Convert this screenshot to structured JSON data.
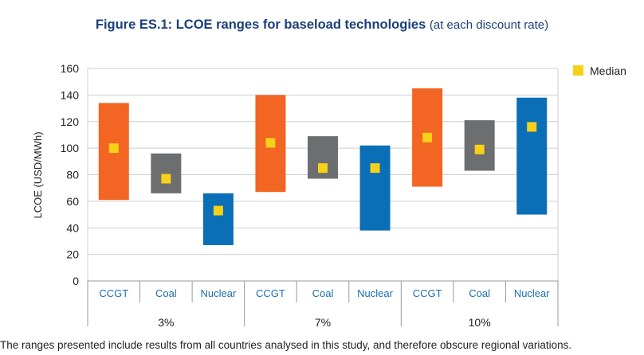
{
  "title": {
    "main": "Figure ES.1: LCOE ranges for baseload technologies",
    "sub": "(at each discount rate)"
  },
  "note": "The ranges presented include results from all countries analysed in this study, and therefore obscure regional variations.",
  "chart_data": {
    "type": "bar",
    "ylabel": "LCOE (USD/MWh)",
    "ylim": [
      0,
      160
    ],
    "yticks": [
      0,
      20,
      40,
      60,
      80,
      100,
      120,
      140,
      160
    ],
    "grid": true,
    "legend": {
      "placement": "top-right",
      "label": "Median",
      "color": "#f7d117"
    },
    "groups": [
      "3%",
      "7%",
      "10%"
    ],
    "categories": [
      "CCGT",
      "Coal",
      "Nuclear",
      "CCGT",
      "Coal",
      "Nuclear",
      "CCGT",
      "Coal",
      "Nuclear"
    ],
    "series": [
      {
        "group": "3%",
        "technology": "CCGT",
        "min": 61,
        "max": 134,
        "median": 100,
        "color": "#f26522"
      },
      {
        "group": "3%",
        "technology": "Coal",
        "min": 66,
        "max": 96,
        "median": 77,
        "color": "#6d6e70"
      },
      {
        "group": "3%",
        "technology": "Nuclear",
        "min": 27,
        "max": 66,
        "median": 53,
        "color": "#0a6fb7"
      },
      {
        "group": "7%",
        "technology": "CCGT",
        "min": 67,
        "max": 140,
        "median": 104,
        "color": "#f26522"
      },
      {
        "group": "7%",
        "technology": "Coal",
        "min": 77,
        "max": 109,
        "median": 85,
        "color": "#6d6e70"
      },
      {
        "group": "7%",
        "technology": "Nuclear",
        "min": 38,
        "max": 102,
        "median": 85,
        "color": "#0a6fb7"
      },
      {
        "group": "10%",
        "technology": "CCGT",
        "min": 71,
        "max": 145,
        "median": 108,
        "color": "#f26522"
      },
      {
        "group": "10%",
        "technology": "Coal",
        "min": 83,
        "max": 121,
        "median": 99,
        "color": "#6d6e70"
      },
      {
        "group": "10%",
        "technology": "Nuclear",
        "min": 50,
        "max": 138,
        "median": 116,
        "color": "#0a6fb7"
      }
    ]
  }
}
